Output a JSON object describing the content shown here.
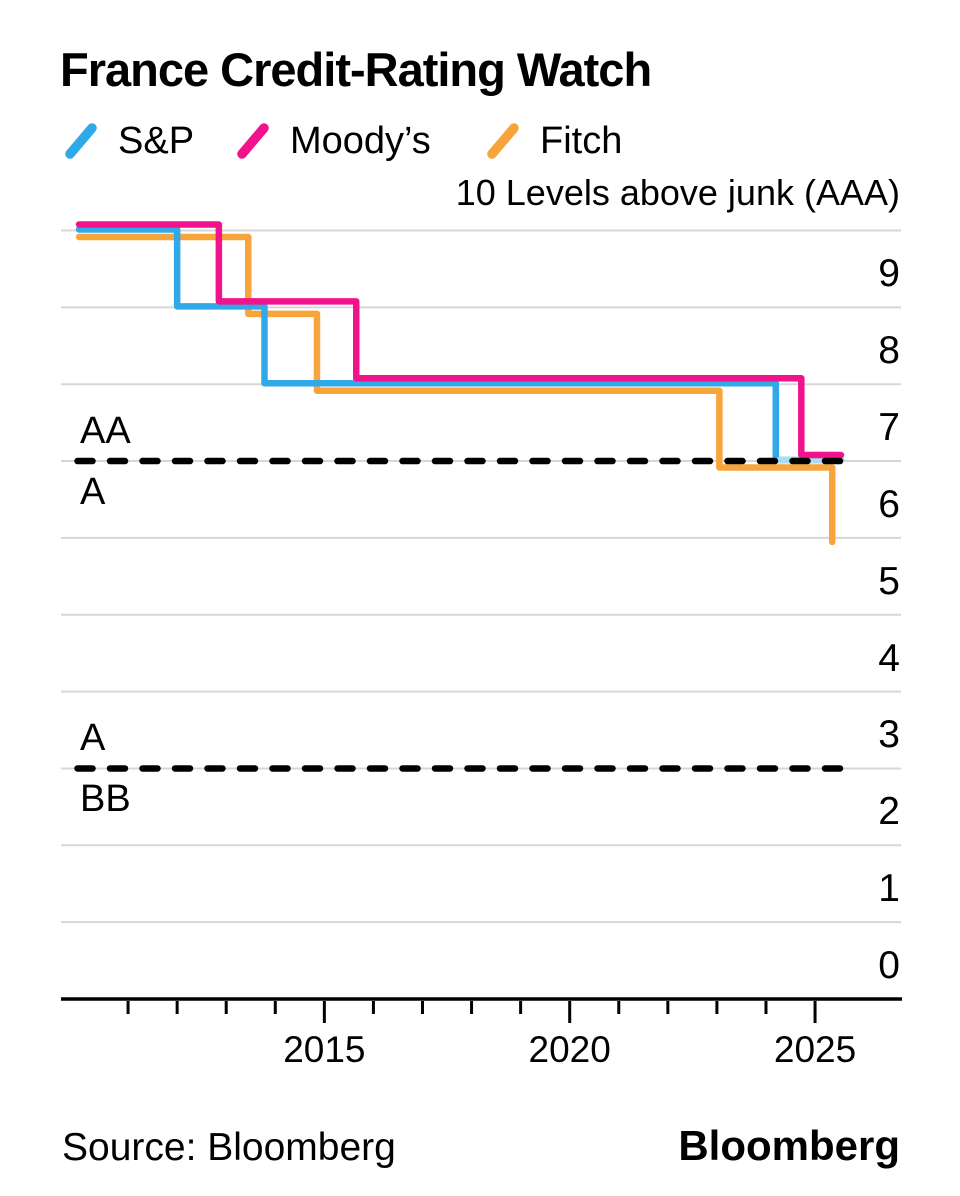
{
  "title": "France Credit-Rating Watch",
  "legend": [
    {
      "label": "S&P",
      "color": "#2FA9E8"
    },
    {
      "label": "Moody’s",
      "color": "#F2138C"
    },
    {
      "label": "Fitch",
      "color": "#F7A43B"
    }
  ],
  "source": "Source: Bloomberg",
  "brand": "Bloomberg",
  "chart_data": {
    "type": "step-line",
    "title": "France Credit-Rating Watch",
    "y_axis": {
      "top_note": "10 Levels above junk (AAA)",
      "min": 0,
      "max": 10,
      "tick_labels": [
        {
          "label": "9",
          "level": 9
        },
        {
          "label": "8",
          "level": 8
        },
        {
          "label": "7",
          "level": 7
        },
        {
          "label": "6",
          "level": 6
        },
        {
          "label": "5",
          "level": 5
        },
        {
          "label": "4",
          "level": 4
        },
        {
          "label": "3",
          "level": 3
        },
        {
          "label": "2",
          "level": 2
        },
        {
          "label": "1",
          "level": 1
        },
        {
          "label": "0",
          "level": 0
        }
      ]
    },
    "x_axis": {
      "start": 2010,
      "ticks": [
        2011,
        2012,
        2013,
        2014,
        2015,
        2016,
        2017,
        2018,
        2019,
        2020,
        2021,
        2022,
        2023,
        2024,
        2025
      ],
      "major_ticks": [
        2015,
        2020,
        2025
      ],
      "labels": [
        {
          "label": "2015",
          "year": 2015
        },
        {
          "label": "2020",
          "year": 2020
        },
        {
          "label": "2025",
          "year": 2025
        }
      ]
    },
    "thresholds": [
      {
        "above": "AA",
        "below": "A",
        "level": 7
      },
      {
        "above": "A",
        "below": "BB",
        "level": 3
      }
    ],
    "series": [
      {
        "name": "Fitch",
        "color": "#F7A43B",
        "offset": 6.5,
        "steps": [
          [
            2010,
            10
          ],
          [
            2013.45,
            9
          ],
          [
            2014.85,
            8
          ],
          [
            2023.05,
            7
          ],
          [
            2025.35,
            6
          ]
        ],
        "end": 2025.35,
        "tip": true
      },
      {
        "name": "S&P",
        "color": "#2FA9E8",
        "offset": -1,
        "steps": [
          [
            2010,
            10
          ],
          [
            2012.0,
            9
          ],
          [
            2013.78,
            8
          ],
          [
            2024.2,
            7
          ]
        ],
        "end": 2025.53,
        "watch_from": 2024.28,
        "watch_color": "#A8DCF5"
      },
      {
        "name": "Moody’s",
        "color": "#F2138C",
        "offset": -6,
        "steps": [
          [
            2010,
            10
          ],
          [
            2012.85,
            9
          ],
          [
            2015.65,
            8
          ],
          [
            2024.72,
            7
          ]
        ],
        "end": 2025.53
      }
    ],
    "grid_color": "#D7D7D7",
    "threshold_color": "#000000"
  }
}
